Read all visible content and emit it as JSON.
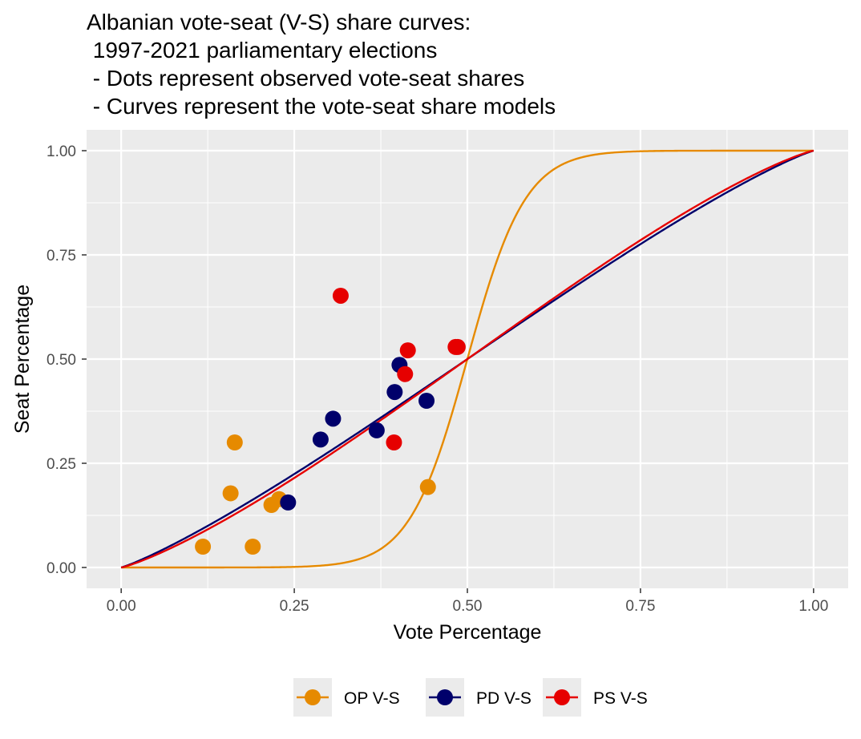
{
  "chart_data": {
    "type": "scatter",
    "title": "Albanian vote-seat (V-S) share curves:\n 1997-2021 parliamentary elections\n - Dots represent observed vote-seat shares\n - Curves represent the vote-seat share models",
    "xlabel": "Vote Percentage",
    "ylabel": "Seat Percentage",
    "xlim": [
      -0.05,
      1.05
    ],
    "ylim": [
      -0.05,
      1.05
    ],
    "x_ticks": [
      "0.00",
      "0.25",
      "0.50",
      "0.75",
      "1.00"
    ],
    "y_ticks": [
      "0.00",
      "0.25",
      "0.50",
      "0.75",
      "1.00"
    ],
    "grid": true,
    "legend_position": "bottom",
    "series": [
      {
        "name": "OP V-S",
        "color": "#E68A00",
        "curve_exponent": 6.0,
        "points": [
          {
            "x": 0.118,
            "y": 0.05
          },
          {
            "x": 0.158,
            "y": 0.178
          },
          {
            "x": 0.164,
            "y": 0.3
          },
          {
            "x": 0.19,
            "y": 0.05
          },
          {
            "x": 0.217,
            "y": 0.15
          },
          {
            "x": 0.228,
            "y": 0.164
          },
          {
            "x": 0.443,
            "y": 0.193
          }
        ]
      },
      {
        "name": "PD V-S",
        "color": "#00006B",
        "curve_exponent": 1.13,
        "points": [
          {
            "x": 0.241,
            "y": 0.156
          },
          {
            "x": 0.288,
            "y": 0.307
          },
          {
            "x": 0.306,
            "y": 0.357
          },
          {
            "x": 0.369,
            "y": 0.329
          },
          {
            "x": 0.395,
            "y": 0.421
          },
          {
            "x": 0.402,
            "y": 0.486
          },
          {
            "x": 0.441,
            "y": 0.4
          }
        ]
      },
      {
        "name": "PS V-S",
        "color": "#E60000",
        "curve_exponent": 1.18,
        "points": [
          {
            "x": 0.317,
            "y": 0.652
          },
          {
            "x": 0.394,
            "y": 0.3
          },
          {
            "x": 0.41,
            "y": 0.464
          },
          {
            "x": 0.414,
            "y": 0.521
          },
          {
            "x": 0.483,
            "y": 0.529
          },
          {
            "x": 0.486,
            "y": 0.529
          }
        ]
      }
    ]
  }
}
